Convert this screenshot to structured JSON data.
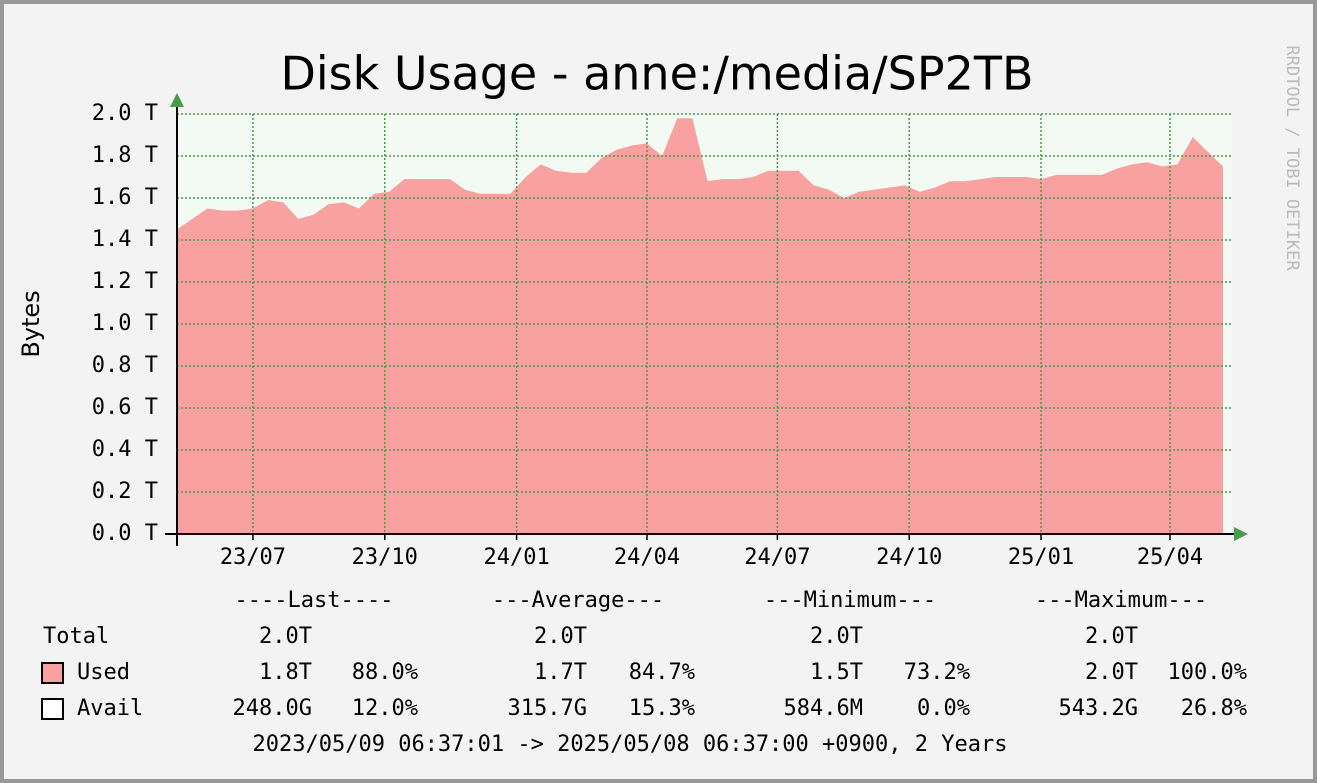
{
  "chart_data": {
    "type": "area",
    "title": "Disk Usage - anne:/media/SP2TB",
    "y_label": "Bytes",
    "watermark": "RRDTOOL / TOBI OETIKER",
    "color": "#f9a0a0",
    "grid": true,
    "grid_color": "#4a9a4a",
    "xlim": [
      "2023-05-09",
      "2025-05-08"
    ],
    "xticks": [
      {
        "value": "2023-07",
        "label": "23/07"
      },
      {
        "value": "2023-10",
        "label": "23/10"
      },
      {
        "value": "2024-01",
        "label": "24/01"
      },
      {
        "value": "2024-04",
        "label": "24/04"
      },
      {
        "value": "2024-07",
        "label": "24/07"
      },
      {
        "value": "2024-10",
        "label": "24/10"
      },
      {
        "value": "2025-01",
        "label": "25/01"
      },
      {
        "value": "2025-04",
        "label": "25/04"
      }
    ],
    "ylim": [
      0,
      2.0
    ],
    "yticks": [
      {
        "value": 0,
        "label": "0.0 T"
      },
      {
        "value": 0.2,
        "label": "0.2 T"
      },
      {
        "value": 0.4,
        "label": "0.4 T"
      },
      {
        "value": 0.6,
        "label": "0.6 T"
      },
      {
        "value": 0.8,
        "label": "0.8 T"
      },
      {
        "value": 1.0,
        "label": "1.0 T"
      },
      {
        "value": 1.2,
        "label": "1.2 T"
      },
      {
        "value": 1.4,
        "label": "1.4 T"
      },
      {
        "value": 1.6,
        "label": "1.6 T"
      },
      {
        "value": 1.8,
        "label": "1.8 T"
      },
      {
        "value": 2.0,
        "label": "2.0 T"
      }
    ],
    "values": [
      1.45,
      1.5,
      1.55,
      1.54,
      1.54,
      1.55,
      1.59,
      1.58,
      1.5,
      1.52,
      1.57,
      1.58,
      1.55,
      1.62,
      1.63,
      1.69,
      1.69,
      1.69,
      1.69,
      1.64,
      1.62,
      1.62,
      1.62,
      1.7,
      1.76,
      1.73,
      1.72,
      1.72,
      1.79,
      1.83,
      1.85,
      1.86,
      1.8,
      1.98,
      1.98,
      1.68,
      1.69,
      1.69,
      1.7,
      1.73,
      1.73,
      1.73,
      1.66,
      1.64,
      1.6,
      1.63,
      1.64,
      1.65,
      1.66,
      1.63,
      1.65,
      1.68,
      1.68,
      1.69,
      1.7,
      1.7,
      1.7,
      1.69,
      1.71,
      1.71,
      1.71,
      1.71,
      1.74,
      1.76,
      1.77,
      1.75,
      1.76,
      1.89,
      1.82,
      1.75
    ],
    "legend": {
      "columns": [
        "----Last----",
        "---Average---",
        "---Minimum---",
        "---Maximum---"
      ],
      "rows": [
        {
          "label": "Total",
          "cells": [
            "2.0T",
            "2.0T",
            "2.0T",
            "2.0T"
          ]
        },
        {
          "label": "Used",
          "swatch": "#f9a0a0",
          "cells": [
            "1.8T",
            "88.0%",
            "1.7T",
            "84.7%",
            "1.5T",
            "73.2%",
            "2.0T",
            "100.0%"
          ]
        },
        {
          "label": "Avail",
          "swatch": "#ffffff",
          "cells": [
            "248.0G",
            "12.0%",
            "315.7G",
            "15.3%",
            "584.6M",
            "0.0%",
            "543.2G",
            "26.8%"
          ]
        }
      ]
    },
    "footer": "2023/05/09 06:37:01 -> 2025/05/08 06:37:00 +0900, 2 Years"
  }
}
